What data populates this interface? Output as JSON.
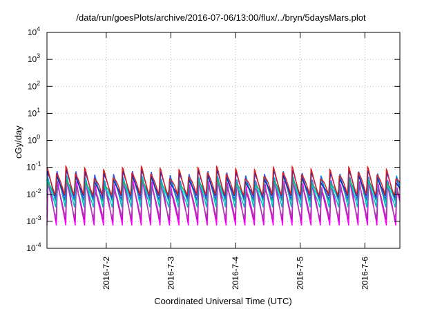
{
  "chart_data": {
    "type": "line",
    "title": "/data/run/goesPlots/archive/2016-07-06/13:00/flux/../bryn/5daysMars.plot",
    "xlabel": "Coordinated Universal Time (UTC)",
    "ylabel": "cGy/day",
    "y_scale": "log",
    "ylim": [
      0.0001,
      10000
    ],
    "y_ticks": [
      {
        "base": "10",
        "exp": "-4",
        "value": 0.0001
      },
      {
        "base": "10",
        "exp": "-3",
        "value": 0.001
      },
      {
        "base": "10",
        "exp": "-2",
        "value": 0.01
      },
      {
        "base": "10",
        "exp": "-1",
        "value": 0.1
      },
      {
        "base": "10",
        "exp": "0",
        "value": 1
      },
      {
        "base": "10",
        "exp": "1",
        "value": 10
      },
      {
        "base": "10",
        "exp": "2",
        "value": 100
      },
      {
        "base": "10",
        "exp": "3",
        "value": 1000
      },
      {
        "base": "10",
        "exp": "4",
        "value": 10000
      }
    ],
    "xlim": [
      "2016-07-01 02:00",
      "2016-07-06 13:00"
    ],
    "x_ticks": [
      {
        "label": "2016-7-2",
        "value": "2016-07-02 00:00"
      },
      {
        "label": "2016-7-3",
        "value": "2016-07-03 00:00"
      },
      {
        "label": "2016-7-4",
        "value": "2016-07-04 00:00"
      },
      {
        "label": "2016-7-5",
        "value": "2016-07-05 00:00"
      },
      {
        "label": "2016-7-6",
        "value": "2016-07-06 00:00"
      }
    ],
    "grid": true,
    "legend": "none",
    "series": [
      {
        "color": "#ff00ff",
        "peak": 0.035,
        "trough": 0.0007
      },
      {
        "color": "#cc00cc",
        "peak": 0.03,
        "trough": 0.0009
      },
      {
        "color": "#aa44aa",
        "peak": 0.025,
        "trough": 0.0012
      },
      {
        "color": "#00bbbb",
        "peak": 0.05,
        "trough": 0.003
      },
      {
        "color": "#00dddd",
        "peak": 0.045,
        "trough": 0.005
      },
      {
        "color": "#22aa66",
        "peak": 0.04,
        "trough": 0.006
      },
      {
        "color": "#3355ee",
        "peak": 0.07,
        "trough": 0.006
      },
      {
        "color": "#2222aa",
        "peak": 0.06,
        "trough": 0.008
      },
      {
        "color": "#dd2222",
        "peak": 0.08,
        "trough": 0.009
      }
    ]
  }
}
